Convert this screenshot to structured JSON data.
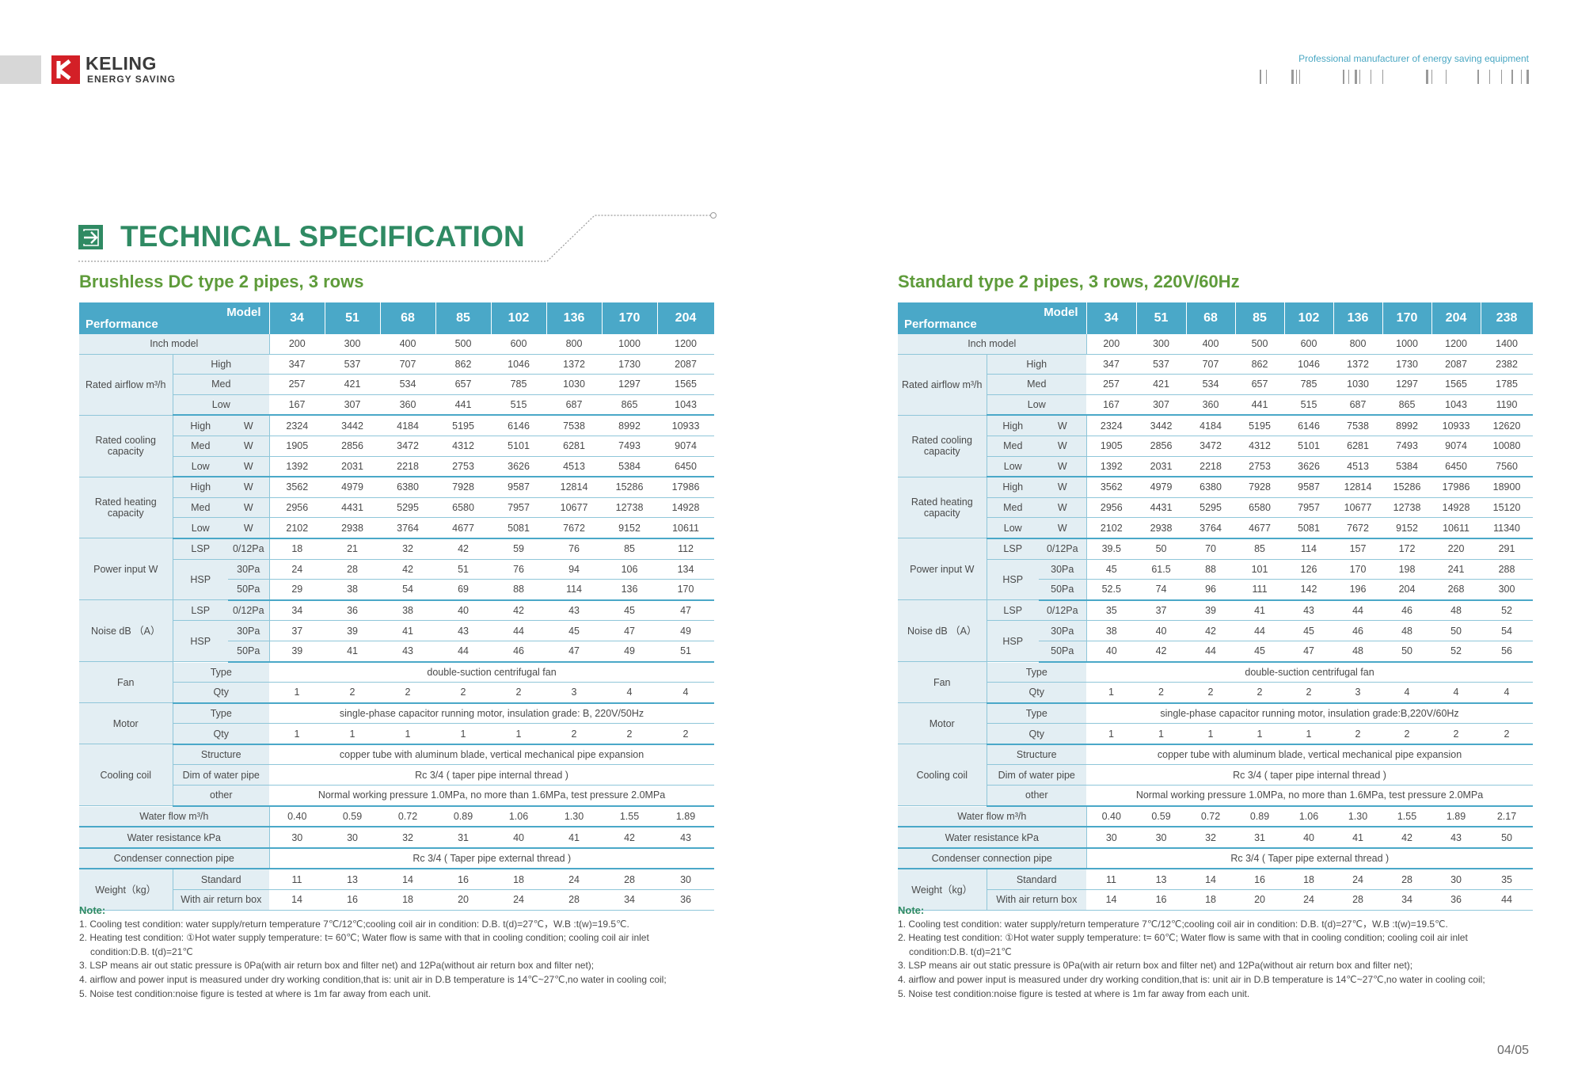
{
  "brand": {
    "name": "KELING",
    "tagline": "ENERGY SAVING",
    "slogan": "Professional manufacturer of energy saving equipment",
    "logo_color": "#d32027"
  },
  "page_title": "TECHNICAL SPECIFICATION",
  "page_number": "04/05",
  "colors": {
    "accent_green": "#2f8a63",
    "subtitle_green": "#5e9b3a",
    "header_blue": "#4aa8c8",
    "label_bg": "#e3eef3"
  },
  "header": {
    "performance": "Performance",
    "model": "Model"
  },
  "labels": {
    "inch_model": "Inch model",
    "rated_airflow": "Rated airflow m³/h",
    "rated_cooling": "Rated cooling capacity",
    "rated_heating": "Rated heating capacity",
    "power_input": "Power input W",
    "noise": "Noise dB （A）",
    "fan": "Fan",
    "motor": "Motor",
    "cooling_coil": "Cooling coil",
    "water_flow": "Water flow m³/h",
    "water_resistance": "Water resistance kPa",
    "condenser": "Condenser connection pipe",
    "weight": "Weight（kg）",
    "high": "High",
    "med": "Med",
    "low": "Low",
    "w": "W",
    "lsp": "LSP",
    "hsp": "HSP",
    "p012": "0/12Pa",
    "p30": "30Pa",
    "p50": "50Pa",
    "type": "Type",
    "qty": "Qty",
    "structure": "Structure",
    "dim_pipe": "Dim of water pipe",
    "other": "other",
    "standard": "Standard",
    "with_box": "With air return box"
  },
  "left": {
    "subtitle": "Brushless DC type 2 pipes, 3 rows",
    "models": [
      "34",
      "51",
      "68",
      "85",
      "102",
      "136",
      "170",
      "204"
    ],
    "inch": [
      "200",
      "300",
      "400",
      "500",
      "600",
      "800",
      "1000",
      "1200"
    ],
    "air_high": [
      "347",
      "537",
      "707",
      "862",
      "1046",
      "1372",
      "1730",
      "2087"
    ],
    "air_med": [
      "257",
      "421",
      "534",
      "657",
      "785",
      "1030",
      "1297",
      "1565"
    ],
    "air_low": [
      "167",
      "307",
      "360",
      "441",
      "515",
      "687",
      "865",
      "1043"
    ],
    "cool_high": [
      "2324",
      "3442",
      "4184",
      "5195",
      "6146",
      "7538",
      "8992",
      "10933"
    ],
    "cool_med": [
      "1905",
      "2856",
      "3472",
      "4312",
      "5101",
      "6281",
      "7493",
      "9074"
    ],
    "cool_low": [
      "1392",
      "2031",
      "2218",
      "2753",
      "3626",
      "4513",
      "5384",
      "6450"
    ],
    "heat_high": [
      "3562",
      "4979",
      "6380",
      "7928",
      "9587",
      "12814",
      "15286",
      "17986"
    ],
    "heat_med": [
      "2956",
      "4431",
      "5295",
      "6580",
      "7957",
      "10677",
      "12738",
      "14928"
    ],
    "heat_low": [
      "2102",
      "2938",
      "3764",
      "4677",
      "5081",
      "7672",
      "9152",
      "10611"
    ],
    "pw_lsp": [
      "18",
      "21",
      "32",
      "42",
      "59",
      "76",
      "85",
      "112"
    ],
    "pw_30": [
      "24",
      "28",
      "42",
      "51",
      "76",
      "94",
      "106",
      "134"
    ],
    "pw_50": [
      "29",
      "38",
      "54",
      "69",
      "88",
      "114",
      "136",
      "170"
    ],
    "nz_lsp": [
      "34",
      "36",
      "38",
      "40",
      "42",
      "43",
      "45",
      "47"
    ],
    "nz_30": [
      "37",
      "39",
      "41",
      "43",
      "44",
      "45",
      "47",
      "49"
    ],
    "nz_50": [
      "39",
      "41",
      "43",
      "44",
      "46",
      "47",
      "49",
      "51"
    ],
    "fan_type": "double-suction centrifugal fan",
    "fan_qty": [
      "1",
      "2",
      "2",
      "2",
      "2",
      "3",
      "4",
      "4"
    ],
    "motor_type": "single-phase capacitor running motor, insulation grade: B, 220V/50Hz",
    "motor_qty": [
      "1",
      "1",
      "1",
      "1",
      "1",
      "2",
      "2",
      "2"
    ],
    "coil_structure": "copper tube with aluminum blade, vertical mechanical pipe expansion",
    "coil_dim": "Rc 3/4 ( taper pipe internal thread )",
    "coil_other": "Normal working pressure 1.0MPa, no more than 1.6MPa, test pressure 2.0MPa",
    "water_flow": [
      "0.40",
      "0.59",
      "0.72",
      "0.89",
      "1.06",
      "1.30",
      "1.55",
      "1.89"
    ],
    "water_res": [
      "30",
      "30",
      "32",
      "31",
      "40",
      "41",
      "42",
      "43"
    ],
    "condenser": "Rc 3/4 ( Taper pipe external thread )",
    "wt_std": [
      "11",
      "13",
      "14",
      "16",
      "18",
      "24",
      "28",
      "30"
    ],
    "wt_box": [
      "14",
      "16",
      "18",
      "20",
      "24",
      "28",
      "34",
      "36"
    ]
  },
  "right": {
    "subtitle": "Standard type 2 pipes, 3 rows, 220V/60Hz",
    "models": [
      "34",
      "51",
      "68",
      "85",
      "102",
      "136",
      "170",
      "204",
      "238"
    ],
    "inch": [
      "200",
      "300",
      "400",
      "500",
      "600",
      "800",
      "1000",
      "1200",
      "1400"
    ],
    "air_high": [
      "347",
      "537",
      "707",
      "862",
      "1046",
      "1372",
      "1730",
      "2087",
      "2382"
    ],
    "air_med": [
      "257",
      "421",
      "534",
      "657",
      "785",
      "1030",
      "1297",
      "1565",
      "1785"
    ],
    "air_low": [
      "167",
      "307",
      "360",
      "441",
      "515",
      "687",
      "865",
      "1043",
      "1190"
    ],
    "cool_high": [
      "2324",
      "3442",
      "4184",
      "5195",
      "6146",
      "7538",
      "8992",
      "10933",
      "12620"
    ],
    "cool_med": [
      "1905",
      "2856",
      "3472",
      "4312",
      "5101",
      "6281",
      "7493",
      "9074",
      "10080"
    ],
    "cool_low": [
      "1392",
      "2031",
      "2218",
      "2753",
      "3626",
      "4513",
      "5384",
      "6450",
      "7560"
    ],
    "heat_high": [
      "3562",
      "4979",
      "6380",
      "7928",
      "9587",
      "12814",
      "15286",
      "17986",
      "18900"
    ],
    "heat_med": [
      "2956",
      "4431",
      "5295",
      "6580",
      "7957",
      "10677",
      "12738",
      "14928",
      "15120"
    ],
    "heat_low": [
      "2102",
      "2938",
      "3764",
      "4677",
      "5081",
      "7672",
      "9152",
      "10611",
      "11340"
    ],
    "pw_lsp": [
      "39.5",
      "50",
      "70",
      "85",
      "114",
      "157",
      "172",
      "220",
      "291"
    ],
    "pw_30": [
      "45",
      "61.5",
      "88",
      "101",
      "126",
      "170",
      "198",
      "241",
      "288"
    ],
    "pw_50": [
      "52.5",
      "74",
      "96",
      "111",
      "142",
      "196",
      "204",
      "268",
      "300"
    ],
    "nz_lsp": [
      "35",
      "37",
      "39",
      "41",
      "43",
      "44",
      "46",
      "48",
      "52"
    ],
    "nz_30": [
      "38",
      "40",
      "42",
      "44",
      "45",
      "46",
      "48",
      "50",
      "54"
    ],
    "nz_50": [
      "40",
      "42",
      "44",
      "45",
      "47",
      "48",
      "50",
      "52",
      "56"
    ],
    "fan_type": "double-suction centrifugal fan",
    "fan_qty": [
      "1",
      "2",
      "2",
      "2",
      "2",
      "3",
      "4",
      "4",
      "4"
    ],
    "motor_type": "single-phase capacitor running motor, insulation grade:B,220V/60Hz",
    "motor_qty": [
      "1",
      "1",
      "1",
      "1",
      "1",
      "2",
      "2",
      "2",
      "2"
    ],
    "coil_structure": "copper tube with aluminum blade, vertical mechanical pipe expansion",
    "coil_dim": "Rc 3/4 ( taper pipe internal thread )",
    "coil_other": "Normal working pressure 1.0MPa, no more than 1.6MPa, test pressure 2.0MPa",
    "water_flow": [
      "0.40",
      "0.59",
      "0.72",
      "0.89",
      "1.06",
      "1.30",
      "1.55",
      "1.89",
      "2.17"
    ],
    "water_res": [
      "30",
      "30",
      "32",
      "31",
      "40",
      "41",
      "42",
      "43",
      "50"
    ],
    "condenser": "Rc 3/4 ( Taper pipe external thread )",
    "wt_std": [
      "11",
      "13",
      "14",
      "16",
      "18",
      "24",
      "28",
      "30",
      "35"
    ],
    "wt_box": [
      "14",
      "16",
      "18",
      "20",
      "24",
      "28",
      "34",
      "36",
      "44"
    ]
  },
  "notes": {
    "heading": "Note:",
    "lines": [
      "1. Cooling test condition: water supply/return temperature 7℃/12℃;cooling coil air in condition: D.B. t(d)=27℃，W.B :t(w)=19.5℃.",
      "2. Heating test condition: ①Hot water supply temperature: t= 60℃; Water flow is same with that in cooling condition; cooling coil air inlet",
      "condition:D.B. t(d)=21℃",
      "3. LSP means air out static pressure is 0Pa(with air return box and filter net) and 12Pa(without air return box and filter net);",
      "4. airflow and power input is measured under dry working condition,that is: unit air in D.B temperature is 14℃~27℃,no water in cooling coil;",
      "5. Noise test condition:noise figure is tested at where is 1m far away from each unit."
    ]
  }
}
